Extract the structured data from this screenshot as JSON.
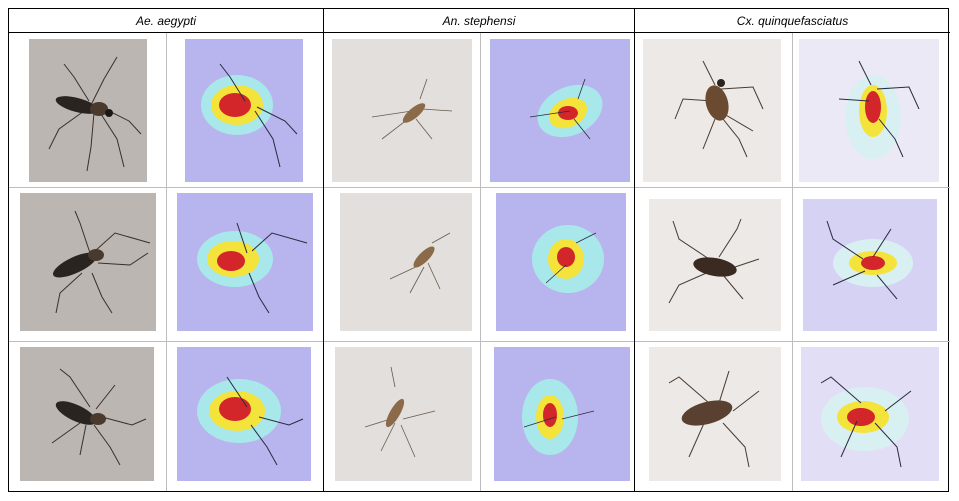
{
  "columns": [
    {
      "label": "Ae. aegypti"
    },
    {
      "label": "An. stephensi"
    },
    {
      "label": "Cx. quinquefasciatus"
    }
  ],
  "colors": {
    "photo_bg_ae": "#bcb6b2",
    "photo_bg_an": "#e2dfdc",
    "photo_bg_cx": "#ece9e6",
    "heatmap_bg": "#b8b5ee",
    "heat_red": "#d2262a",
    "heat_yellow": "#f4e33a",
    "heat_cyan": "#a8e8ea",
    "grid_line": "#bdbdbd",
    "border": "#000000"
  },
  "image_types": [
    "original-photo",
    "grad-cam-heatmap"
  ]
}
